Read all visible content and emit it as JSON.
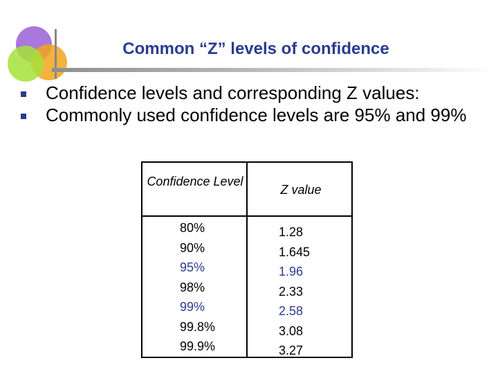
{
  "slide": {
    "title": "Common “Z” levels of confidence",
    "bullets": [
      "Confidence levels and corresponding Z values:",
      "Commonly used confidence levels are 95% and 99%"
    ]
  },
  "table": {
    "headers": {
      "confidence": "Confidence Level",
      "z": "Z value"
    },
    "rows": [
      {
        "confidence": "80%",
        "z": "1.28",
        "highlight": false
      },
      {
        "confidence": "90%",
        "z": "1.645",
        "highlight": false
      },
      {
        "confidence": "95%",
        "z": "1.96",
        "highlight": true
      },
      {
        "confidence": "98%",
        "z": "2.33",
        "highlight": false
      },
      {
        "confidence": "99%",
        "z": "2.58",
        "highlight": true
      },
      {
        "confidence": "99.8%",
        "z": "3.08",
        "highlight": false
      },
      {
        "confidence": "99.9%",
        "z": "3.27",
        "highlight": false
      }
    ]
  },
  "colors": {
    "title": "#2a3b8f",
    "highlight": "#2a3b8f",
    "text": "#000000"
  }
}
